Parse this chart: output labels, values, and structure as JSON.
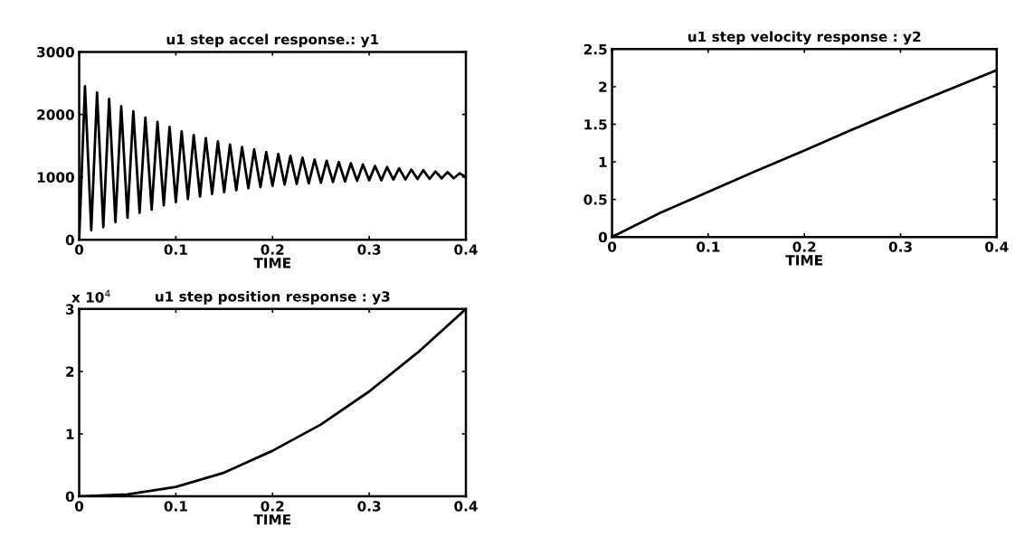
{
  "chart_data": [
    {
      "type": "line",
      "title": "u1 step accel response.: y1",
      "xlabel": "TIME",
      "x": [
        0,
        0.006,
        0.0125,
        0.0185,
        0.025,
        0.031,
        0.0375,
        0.0435,
        0.05,
        0.056,
        0.0625,
        0.0685,
        0.075,
        0.081,
        0.0875,
        0.0935,
        0.1,
        0.106,
        0.1125,
        0.1185,
        0.125,
        0.131,
        0.1375,
        0.1435,
        0.15,
        0.156,
        0.1625,
        0.1685,
        0.175,
        0.181,
        0.1875,
        0.1935,
        0.2,
        0.206,
        0.2125,
        0.2185,
        0.225,
        0.231,
        0.2375,
        0.2435,
        0.25,
        0.256,
        0.2625,
        0.2685,
        0.275,
        0.281,
        0.2875,
        0.2935,
        0.3,
        0.306,
        0.3125,
        0.3185,
        0.325,
        0.331,
        0.3375,
        0.3435,
        0.35,
        0.356,
        0.3625,
        0.3685,
        0.375,
        0.381,
        0.3875,
        0.3935,
        0.4
      ],
      "series": [
        {
          "color": "#000000",
          "values": [
            0,
            2450,
            150,
            2350,
            200,
            2250,
            280,
            2130,
            350,
            2050,
            430,
            1950,
            480,
            1880,
            550,
            1800,
            600,
            1730,
            650,
            1670,
            690,
            1620,
            730,
            1570,
            760,
            1520,
            790,
            1480,
            820,
            1440,
            840,
            1400,
            860,
            1370,
            880,
            1340,
            890,
            1310,
            900,
            1280,
            910,
            1260,
            920,
            1240,
            930,
            1220,
            940,
            1200,
            950,
            1180,
            950,
            1160,
            960,
            1140,
            960,
            1120,
            970,
            1110,
            970,
            1090,
            980,
            1080,
            980,
            1060,
            1000
          ]
        }
      ],
      "xlim": [
        0,
        0.4
      ],
      "ylim": [
        0,
        3000
      ],
      "xticks": [
        0,
        0.1,
        0.2,
        0.3,
        0.4
      ],
      "yticks": [
        0,
        1000,
        2000,
        3000
      ],
      "grid": false,
      "legend": false
    },
    {
      "type": "line",
      "title": "u1 step velocity response : y2",
      "xlabel": "TIME",
      "x": [
        0,
        0.05,
        0.1,
        0.15,
        0.2,
        0.25,
        0.3,
        0.35,
        0.4
      ],
      "series": [
        {
          "color": "#000000",
          "values": [
            0,
            0.32,
            0.6,
            0.88,
            1.15,
            1.43,
            1.7,
            1.96,
            2.22
          ]
        }
      ],
      "xlim": [
        0,
        0.4
      ],
      "ylim": [
        0,
        2.5
      ],
      "xticks": [
        0,
        0.1,
        0.2,
        0.3,
        0.4
      ],
      "yticks": [
        0,
        0.5,
        1,
        1.5,
        2,
        2.5
      ],
      "grid": false,
      "legend": false
    },
    {
      "type": "line",
      "title": "u1 step position response : y3",
      "xlabel": "TIME",
      "annotations": [
        "x 10$^{4}$"
      ],
      "x": [
        0,
        0.05,
        0.1,
        0.15,
        0.2,
        0.25,
        0.3,
        0.35,
        0.4
      ],
      "series": [
        {
          "color": "#000000",
          "values": [
            0,
            0.03,
            0.15,
            0.38,
            0.73,
            1.15,
            1.68,
            2.3,
            3.0
          ]
        }
      ],
      "xlim": [
        0,
        0.4
      ],
      "ylim": [
        0,
        3
      ],
      "xticks": [
        0,
        0.1,
        0.2,
        0.3,
        0.4
      ],
      "yticks": [
        0,
        1,
        2,
        3
      ],
      "grid": false,
      "legend": false
    }
  ]
}
